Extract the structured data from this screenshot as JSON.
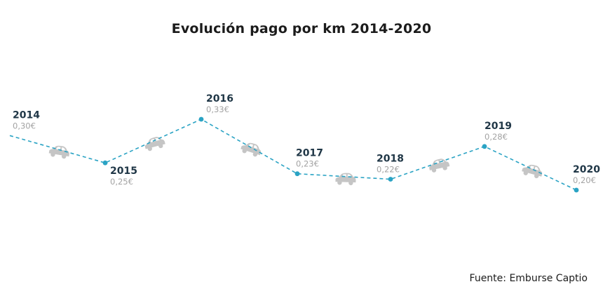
{
  "chart_data": {
    "type": "line",
    "title": "Evolución pago por km 2014-2020",
    "categories": [
      "2014",
      "2015",
      "2016",
      "2017",
      "2018",
      "2019",
      "2020"
    ],
    "series": [
      {
        "values": [
          0.3,
          0.25,
          0.33,
          0.23,
          0.22,
          0.28,
          0.2
        ],
        "value_labels": [
          "0,30€",
          "0,25€",
          "0,33€",
          "0,23€",
          "0,22€",
          "0,28€",
          "0,20€"
        ]
      }
    ],
    "line_style": "dashed",
    "line_color": "#2aa3c4",
    "car_icon_color": "#c5c5c5",
    "decorative_icons": "car-icon",
    "grid": false,
    "legend": "none",
    "source": "Fuente: Emburse Captio"
  }
}
